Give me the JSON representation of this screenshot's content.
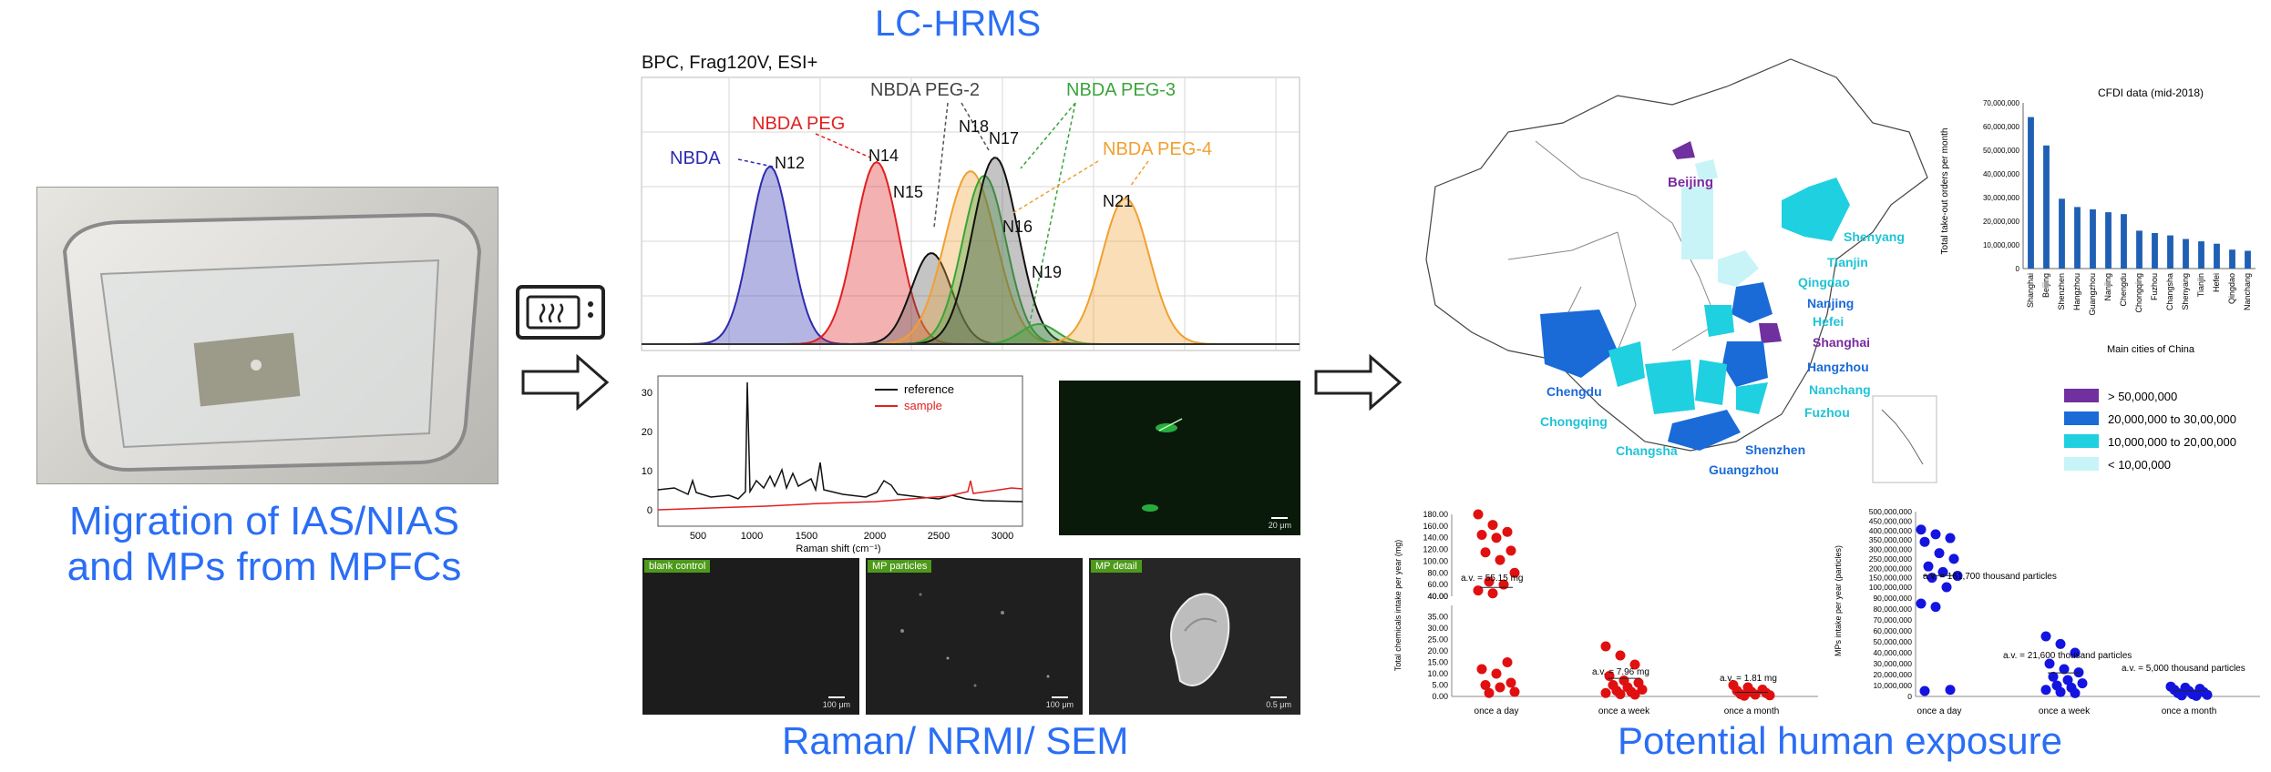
{
  "left": {
    "caption_line1": "Migration of IAS/NIAS",
    "caption_line2": "and MPs from MPFCs"
  },
  "icons": {
    "microwave": "microwave-icon",
    "arrow": "right-arrow-icon"
  },
  "middle": {
    "title": "LC-HRMS",
    "chromatogram": {
      "header": "BPC,  Frag120V, ESI+",
      "compounds": [
        {
          "name": "NBDA",
          "color": "#2b2bb0"
        },
        {
          "name": "NBDA PEG",
          "color": "#e02020"
        },
        {
          "name": "NBDA PEG-2",
          "color": "#555555"
        },
        {
          "name": "NBDA PEG-3",
          "color": "#3aa43a"
        },
        {
          "name": "NBDA PEG-4",
          "color": "#f0a030"
        }
      ],
      "peaks": [
        "N12",
        "N14",
        "N15",
        "N18",
        "N17",
        "N16",
        "N19",
        "N21"
      ]
    },
    "raman": {
      "xlabel": "Raman shift (cm⁻¹)",
      "xticks": [
        "500",
        "1000",
        "1500",
        "2000",
        "2500",
        "3000"
      ],
      "yticks": [
        "0",
        "10",
        "20",
        "30"
      ],
      "legend": [
        {
          "name": "reference",
          "color": "#111111"
        },
        {
          "name": "sample",
          "color": "#e02020"
        }
      ]
    },
    "fluorescence": {
      "scale": "20 μm"
    },
    "sem": [
      {
        "label": "blank control",
        "scale": "100 μm"
      },
      {
        "label": "MP particles",
        "scale": "100 μm"
      },
      {
        "label": "MP detail",
        "scale": "0.5 μm"
      }
    ],
    "caption": "Raman/ NRMI/ SEM"
  },
  "map": {
    "cities": [
      {
        "name": "Beijing",
        "color": "#7a2aa0"
      },
      {
        "name": "Shenyang",
        "color": "#1fc4d6"
      },
      {
        "name": "Tianjin",
        "color": "#1fc4d6"
      },
      {
        "name": "Qingdao",
        "color": "#1fc4d6"
      },
      {
        "name": "Nanjing",
        "color": "#1a6ad8"
      },
      {
        "name": "Hefei",
        "color": "#1fc4d6"
      },
      {
        "name": "Shanghai",
        "color": "#7a2aa0"
      },
      {
        "name": "Hangzhou",
        "color": "#1a6ad8"
      },
      {
        "name": "Nanchang",
        "color": "#1fc4d6"
      },
      {
        "name": "Fuzhou",
        "color": "#1fc4d6"
      },
      {
        "name": "Shenzhen",
        "color": "#1a6ad8"
      },
      {
        "name": "Guangzhou",
        "color": "#1a6ad8"
      },
      {
        "name": "Chengdu",
        "color": "#1a6ad8"
      },
      {
        "name": "Chongqing",
        "color": "#1fc4d6"
      },
      {
        "name": "Changsha",
        "color": "#1fc4d6"
      }
    ],
    "legend": [
      {
        "label": "> 50,000,000",
        "color": "#7030a0"
      },
      {
        "label": "20,000,000 to 30,00,000",
        "color": "#1a6ad8"
      },
      {
        "label": "10,000,000 to 20,00,000",
        "color": "#1fd0e0"
      },
      {
        "label": "< 10,00,000",
        "color": "#c8f4f8"
      }
    ]
  },
  "chart_data": [
    {
      "type": "bar",
      "title": "CFDI data (mid-2018)",
      "xlabel": "Main cities of China",
      "ylabel": "Total take-out orders per month",
      "ylim": [
        0,
        70000000
      ],
      "yticks": [
        "0",
        "10,000,000",
        "20,000,000",
        "30,000,000",
        "40,000,000",
        "50,000,000",
        "60,000,000",
        "70,000,000"
      ],
      "categories": [
        "Shanghai",
        "Beijing",
        "Shenzhen",
        "Hangzhou",
        "Guangzhou",
        "Nanjing",
        "Chengdu",
        "Chongqing",
        "Fuzhou",
        "Changsha",
        "Shenyang",
        "Tianjin",
        "Hefei",
        "Qingdao",
        "Nanchang"
      ],
      "values": [
        64000000,
        52000000,
        29500000,
        26000000,
        25000000,
        23800000,
        23000000,
        16000000,
        15000000,
        14000000,
        12500000,
        11500000,
        10500000,
        8000000,
        7500000
      ],
      "color": "#1f5fb4"
    },
    {
      "type": "scatter",
      "ylabel": "Total chemicals intake per year (mg)",
      "categories": [
        "once a day",
        "once a week",
        "once a month"
      ],
      "yticks_upper": [
        "40.00",
        "60.00",
        "80.00",
        "100.00",
        "120.00",
        "140.00",
        "160.00",
        "180.00"
      ],
      "yticks_lower": [
        "0.00",
        "5.00",
        "10.00",
        "15.00",
        "20.00",
        "25.00",
        "30.00",
        "35.00",
        "40.00"
      ],
      "annotations": [
        "a.v. = 55.15 mg",
        "a.v. = 7.96 mg",
        "a.v. = 1.81 mg"
      ],
      "series": [
        {
          "color": "#e01010",
          "values": [
            [
              0,
              180
            ],
            [
              0,
              162
            ],
            [
              0,
              150
            ],
            [
              0,
              145
            ],
            [
              0,
              140
            ],
            [
              0,
              118
            ],
            [
              0,
              115
            ],
            [
              0,
              102
            ],
            [
              0,
              80
            ],
            [
              0,
              65
            ],
            [
              0,
              60
            ],
            [
              0,
              50
            ],
            [
              0,
              45
            ],
            [
              0,
              15
            ],
            [
              0,
              12
            ],
            [
              0,
              10
            ],
            [
              0,
              6
            ],
            [
              0,
              5
            ],
            [
              0,
              4
            ],
            [
              0,
              2
            ],
            [
              0,
              1.5
            ],
            [
              1,
              22
            ],
            [
              1,
              18
            ],
            [
              1,
              14
            ],
            [
              1,
              9
            ],
            [
              1,
              7
            ],
            [
              1,
              6
            ],
            [
              1,
              5
            ],
            [
              1,
              4
            ],
            [
              1,
              3
            ],
            [
              1,
              2.5
            ],
            [
              1,
              2
            ],
            [
              1,
              1.5
            ],
            [
              1,
              1
            ],
            [
              1,
              0.8
            ],
            [
              2,
              5
            ],
            [
              2,
              4
            ],
            [
              2,
              3
            ],
            [
              2,
              2.5
            ],
            [
              2,
              2
            ],
            [
              2,
              1.5
            ],
            [
              2,
              1
            ],
            [
              2,
              0.8
            ],
            [
              2,
              0.5
            ],
            [
              2,
              0.3
            ]
          ]
        }
      ]
    },
    {
      "type": "scatter",
      "ylabel": "MPs intake per year (particles)",
      "categories": [
        "once a day",
        "once a week",
        "once a month"
      ],
      "ylim": [
        0,
        500000000
      ],
      "yticks": [
        "0",
        "10,000,000",
        "20,000,000",
        "30,000,000",
        "40,000,000",
        "50,000,000",
        "60,000,000",
        "70,000,000",
        "80,000,000",
        "90,000,000",
        "100,000,000",
        "150,000,000",
        "200,000,000",
        "250,000,000",
        "300,000,000",
        "350,000,000",
        "400,000,000",
        "450,000,000",
        "500,000,000"
      ],
      "annotations": [
        "a.v. = 161,700 thousand particles",
        "a.v. = 21,600 thousand particles",
        "a.v. = 5,000 thousand particles"
      ],
      "series": [
        {
          "color": "#1414e0",
          "values": [
            [
              0,
              405000000
            ],
            [
              0,
              380000000
            ],
            [
              0,
              360000000
            ],
            [
              0,
              340000000
            ],
            [
              0,
              280000000
            ],
            [
              0,
              250000000
            ],
            [
              0,
              210000000
            ],
            [
              0,
              180000000
            ],
            [
              0,
              160000000
            ],
            [
              0,
              150000000
            ],
            [
              0,
              100000000
            ],
            [
              0,
              85000000
            ],
            [
              0,
              82000000
            ],
            [
              0,
              6000000
            ],
            [
              0,
              5000000
            ],
            [
              1,
              55000000
            ],
            [
              1,
              48000000
            ],
            [
              1,
              40000000
            ],
            [
              1,
              30000000
            ],
            [
              1,
              25000000
            ],
            [
              1,
              22000000
            ],
            [
              1,
              18000000
            ],
            [
              1,
              15000000
            ],
            [
              1,
              12000000
            ],
            [
              1,
              10000000
            ],
            [
              1,
              8000000
            ],
            [
              1,
              6000000
            ],
            [
              1,
              4000000
            ],
            [
              1,
              3000000
            ],
            [
              2,
              9000000
            ],
            [
              2,
              8000000
            ],
            [
              2,
              7000000
            ],
            [
              2,
              6000000
            ],
            [
              2,
              5000000
            ],
            [
              2,
              4000000
            ],
            [
              2,
              3000000
            ],
            [
              2,
              2000000
            ],
            [
              2,
              1500000
            ],
            [
              2,
              1000000
            ],
            [
              2,
              500000
            ]
          ]
        }
      ]
    }
  ],
  "right": {
    "caption": "Potential human exposure"
  }
}
